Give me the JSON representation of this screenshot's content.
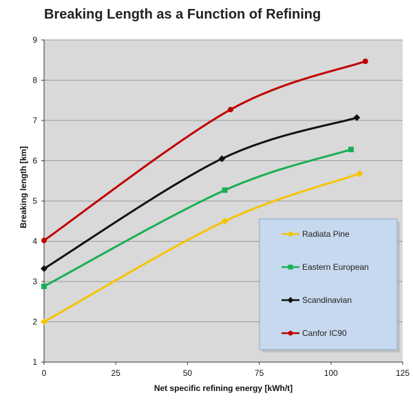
{
  "chart_data": {
    "type": "line",
    "title": "Breaking Length as a Function of Refining",
    "xlabel": "Net specific refining energy [kWh/t]",
    "ylabel": "Breaking length [km]",
    "xlim": [
      0,
      125
    ],
    "ylim": [
      1,
      9
    ],
    "xticks": [
      0,
      25,
      50,
      75,
      100,
      125
    ],
    "yticks": [
      1,
      2,
      3,
      4,
      5,
      6,
      7,
      8,
      9
    ],
    "grid": "horizontal",
    "plot_background": "#d9d9d9",
    "legend_position": "lower-right",
    "legend_background": "#c6d9ef",
    "series": [
      {
        "name": "Radiata Pine",
        "color": "#f5c400",
        "marker": "diamond",
        "points": [
          [
            0,
            2.0
          ],
          [
            63,
            4.5
          ],
          [
            110,
            5.68
          ]
        ]
      },
      {
        "name": "Eastern European",
        "color": "#1aaf54",
        "marker": "square",
        "points": [
          [
            0,
            2.88
          ],
          [
            63,
            5.27
          ],
          [
            107,
            6.28
          ]
        ]
      },
      {
        "name": "Scandinavian",
        "color": "#111111",
        "marker": "diamond",
        "points": [
          [
            0,
            3.32
          ],
          [
            62,
            6.05
          ],
          [
            109,
            7.07
          ]
        ]
      },
      {
        "name": "Canfor IC90",
        "color": "#c00000",
        "marker": "circle",
        "points": [
          [
            0,
            4.02
          ],
          [
            65,
            7.27
          ],
          [
            112,
            8.47
          ]
        ]
      }
    ]
  }
}
